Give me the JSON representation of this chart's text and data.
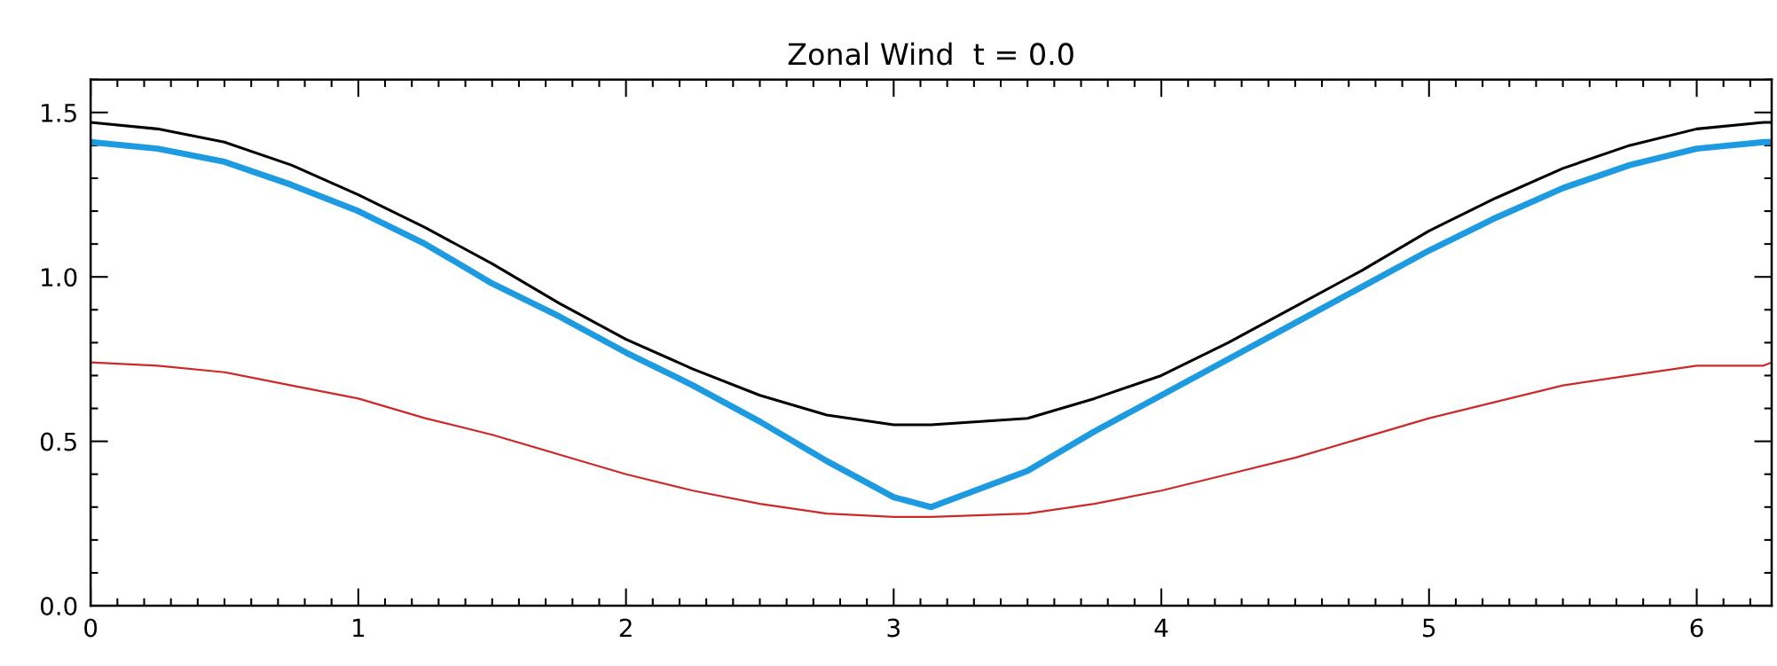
{
  "chart_data": {
    "type": "line",
    "title": "Zonal Wind  t = 0.0",
    "x": [
      0,
      0.25,
      0.5,
      0.75,
      1,
      1.25,
      1.5,
      1.75,
      2,
      2.25,
      2.5,
      2.75,
      3,
      3.14,
      3.5,
      3.75,
      4,
      4.25,
      4.5,
      4.75,
      5,
      5.25,
      5.5,
      5.75,
      6,
      6.25,
      6.28
    ],
    "series": [
      {
        "color": "#000000",
        "values": [
          1.47,
          1.45,
          1.41,
          1.34,
          1.25,
          1.15,
          1.04,
          0.92,
          0.81,
          0.72,
          0.64,
          0.58,
          0.55,
          0.55,
          0.57,
          0.63,
          0.7,
          0.8,
          0.91,
          1.02,
          1.14,
          1.24,
          1.33,
          1.4,
          1.45,
          1.47,
          1.47
        ]
      },
      {
        "color": "#1e9be0",
        "values": [
          1.41,
          1.39,
          1.35,
          1.28,
          1.2,
          1.1,
          0.98,
          0.88,
          0.77,
          0.67,
          0.56,
          0.44,
          0.33,
          0.3,
          0.41,
          0.53,
          0.64,
          0.75,
          0.86,
          0.97,
          1.08,
          1.18,
          1.27,
          1.34,
          1.39,
          1.41,
          1.41
        ]
      },
      {
        "color": "#cc2a2a",
        "values": [
          0.74,
          0.73,
          0.71,
          0.67,
          0.63,
          0.57,
          0.52,
          0.46,
          0.4,
          0.35,
          0.31,
          0.28,
          0.27,
          0.27,
          0.28,
          0.31,
          0.35,
          0.4,
          0.45,
          0.51,
          0.57,
          0.62,
          0.67,
          0.7,
          0.73,
          0.73,
          0.74
        ]
      }
    ],
    "xlim": [
      0,
      6.28
    ],
    "xticks": [
      0,
      1,
      2,
      3,
      4,
      5,
      6
    ],
    "ylim": [
      0,
      1.6
    ],
    "yticks": [
      {
        "value": 0,
        "label": "0.0"
      },
      {
        "value": 0.5,
        "label": "0.5"
      },
      {
        "value": 1.0,
        "label": "1.0"
      },
      {
        "value": 1.5,
        "label": "1.5"
      }
    ],
    "grid": false,
    "marker": "none",
    "line_style": "solid"
  }
}
